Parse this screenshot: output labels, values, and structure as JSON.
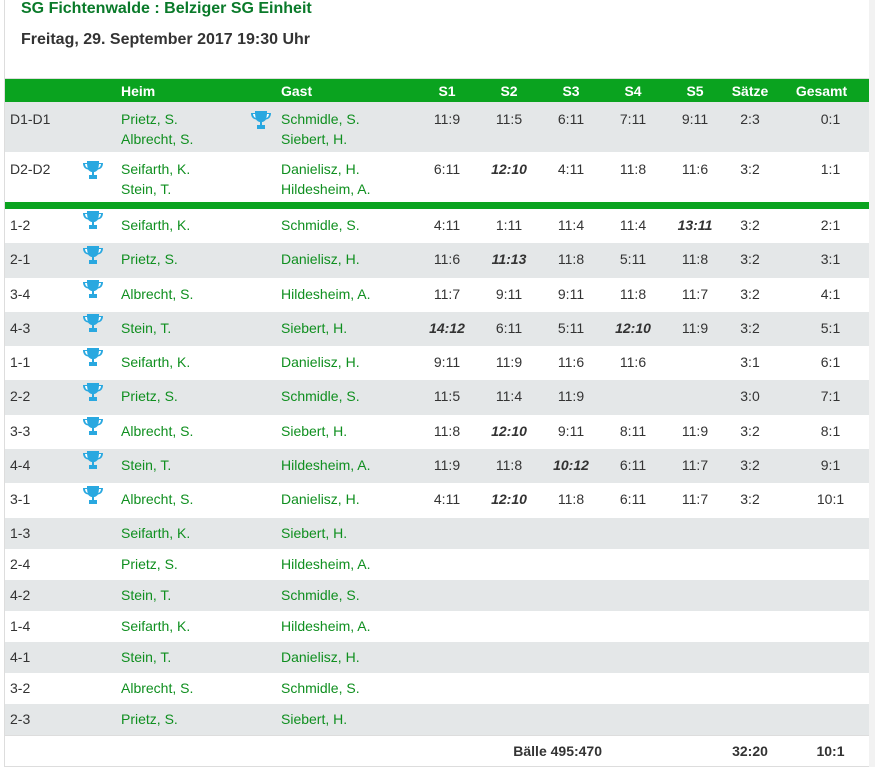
{
  "title": "SG Fichtenwalde : Belziger SG Einheit",
  "date": "Freitag, 29. September 2017 19:30 Uhr",
  "colors": {
    "header_green": "#0aa31f",
    "player_green": "#0f8f1f",
    "trophy": "#29a8e0",
    "row_gray": "#e4e7e8"
  },
  "headers": {
    "heim": "Heim",
    "gast": "Gast",
    "s1": "S1",
    "s2": "S2",
    "s3": "S3",
    "s4": "S4",
    "s5": "S5",
    "saetze": "Sätze",
    "gesamt": "Gesamt"
  },
  "doubles": [
    {
      "name": "D1-D1",
      "winner": "guest",
      "home": [
        "Prietz, S.",
        "Albrecht, S."
      ],
      "guest": [
        "Schmidle, S.",
        "Siebert, H."
      ],
      "sets": [
        "11:9",
        "11:5",
        "6:11",
        "7:11",
        "9:11"
      ],
      "highlight": [],
      "saetze": "2:3",
      "gesamt": "0:1"
    },
    {
      "name": "D2-D2",
      "winner": "home",
      "home": [
        "Seifarth, K.",
        "Stein, T."
      ],
      "guest": [
        "Danielisz, H.",
        "Hildesheim, A."
      ],
      "sets": [
        "6:11",
        "12:10",
        "4:11",
        "11:8",
        "11:6"
      ],
      "highlight": [
        1
      ],
      "saetze": "3:2",
      "gesamt": "1:1"
    }
  ],
  "singles": [
    {
      "name": "1-2",
      "winner": "home",
      "home": "Seifarth, K.",
      "guest": "Schmidle, S.",
      "sets": [
        "4:11",
        "1:11",
        "11:4",
        "11:4",
        "13:11"
      ],
      "highlight": [
        4
      ],
      "saetze": "3:2",
      "gesamt": "2:1"
    },
    {
      "name": "2-1",
      "winner": "home",
      "home": "Prietz, S.",
      "guest": "Danielisz, H.",
      "sets": [
        "11:6",
        "11:13",
        "11:8",
        "5:11",
        "11:8"
      ],
      "highlight": [
        1
      ],
      "saetze": "3:2",
      "gesamt": "3:1"
    },
    {
      "name": "3-4",
      "winner": "home",
      "home": "Albrecht, S.",
      "guest": "Hildesheim, A.",
      "sets": [
        "11:7",
        "9:11",
        "9:11",
        "11:8",
        "11:7"
      ],
      "highlight": [],
      "saetze": "3:2",
      "gesamt": "4:1"
    },
    {
      "name": "4-3",
      "winner": "home",
      "home": "Stein, T.",
      "guest": "Siebert, H.",
      "sets": [
        "14:12",
        "6:11",
        "5:11",
        "12:10",
        "11:9"
      ],
      "highlight": [
        0,
        3
      ],
      "saetze": "3:2",
      "gesamt": "5:1"
    },
    {
      "name": "1-1",
      "winner": "home",
      "home": "Seifarth, K.",
      "guest": "Danielisz, H.",
      "sets": [
        "9:11",
        "11:9",
        "11:6",
        "11:6",
        ""
      ],
      "highlight": [],
      "saetze": "3:1",
      "gesamt": "6:1"
    },
    {
      "name": "2-2",
      "winner": "home",
      "home": "Prietz, S.",
      "guest": "Schmidle, S.",
      "sets": [
        "11:5",
        "11:4",
        "11:9",
        "",
        ""
      ],
      "highlight": [],
      "saetze": "3:0",
      "gesamt": "7:1"
    },
    {
      "name": "3-3",
      "winner": "home",
      "home": "Albrecht, S.",
      "guest": "Siebert, H.",
      "sets": [
        "11:8",
        "12:10",
        "9:11",
        "8:11",
        "11:9"
      ],
      "highlight": [
        1
      ],
      "saetze": "3:2",
      "gesamt": "8:1"
    },
    {
      "name": "4-4",
      "winner": "home",
      "home": "Stein, T.",
      "guest": "Hildesheim, A.",
      "sets": [
        "11:9",
        "11:8",
        "10:12",
        "6:11",
        "11:7"
      ],
      "highlight": [
        2
      ],
      "saetze": "3:2",
      "gesamt": "9:1"
    },
    {
      "name": "3-1",
      "winner": "home",
      "home": "Albrecht, S.",
      "guest": "Danielisz, H.",
      "sets": [
        "4:11",
        "12:10",
        "11:8",
        "6:11",
        "11:7"
      ],
      "highlight": [
        1
      ],
      "saetze": "3:2",
      "gesamt": "10:1"
    }
  ],
  "unplayed": [
    {
      "name": "1-3",
      "home": "Seifarth, K.",
      "guest": "Siebert, H."
    },
    {
      "name": "2-4",
      "home": "Prietz, S.",
      "guest": "Hildesheim, A."
    },
    {
      "name": "4-2",
      "home": "Stein, T.",
      "guest": "Schmidle, S."
    },
    {
      "name": "1-4",
      "home": "Seifarth, K.",
      "guest": "Hildesheim, A."
    },
    {
      "name": "4-1",
      "home": "Stein, T.",
      "guest": "Danielisz, H."
    },
    {
      "name": "3-2",
      "home": "Albrecht, S.",
      "guest": "Schmidle, S."
    },
    {
      "name": "2-3",
      "home": "Prietz, S.",
      "guest": "Siebert, H."
    }
  ],
  "footer": {
    "baelle": "Bälle 495:470",
    "saetze": "32:20",
    "gesamt": "10:1"
  }
}
